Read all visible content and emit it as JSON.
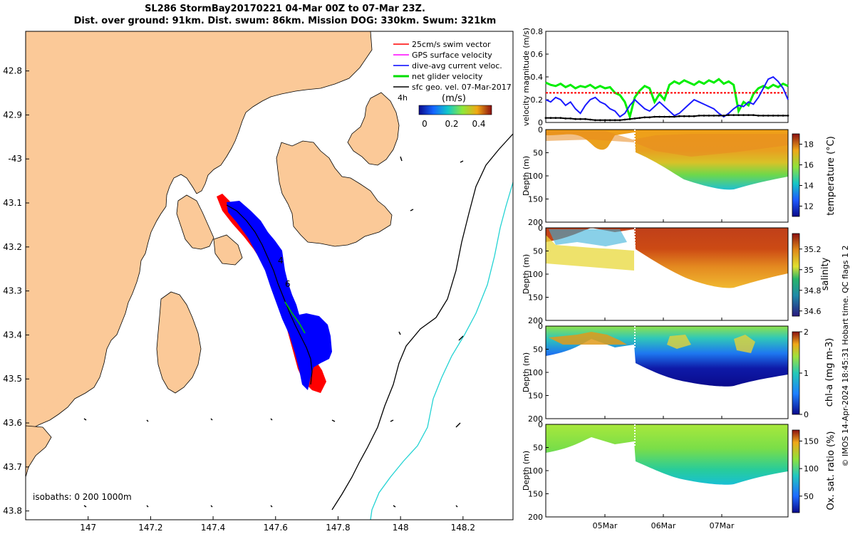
{
  "header": {
    "line1": "SL286 StormBay20170221 04-Mar 00Z to 07-Mar 23Z.",
    "line2": "Dist. over ground: 91km. Dist. swum: 86km. Mission DOG: 330km. Swum: 321km"
  },
  "map": {
    "legend": [
      {
        "label": "25cm/s swim vector",
        "color": "#ff0000"
      },
      {
        "label": "GPS surface velocity",
        "color": "#ff00ff"
      },
      {
        "label": "dive-avg current veloc.",
        "color": "#0000ff"
      },
      {
        "label": "net glider velocity",
        "color": "#00dd00"
      },
      {
        "label": "sfc geo. vel. 07-Mar-2017",
        "color": "#000000"
      }
    ],
    "time_tag": "4h",
    "speed_colorbar": {
      "label": "(m/s)",
      "ticks": [
        "0",
        "0.2",
        "0.4"
      ]
    },
    "isobaths_label": "isobaths: 0   200  1000m",
    "track_labels": [
      "4",
      "6"
    ],
    "land_color": "#fbc998"
  },
  "chart_data": [
    {
      "type": "map",
      "x_tick_labels": [
        "147",
        "147.2",
        "147.4",
        "147.6",
        "147.8",
        "148",
        "148.2"
      ],
      "x_ticks": [
        147,
        147.2,
        147.4,
        147.6,
        147.8,
        148,
        148.2
      ],
      "xlim": [
        146.8,
        148.36
      ],
      "y_tick_labels": [
        "42.8",
        "42.9",
        "-43",
        "43.1",
        "43.2",
        "43.3",
        "43.4",
        "43.5",
        "43.6",
        "43.7",
        "43.8"
      ],
      "y_ticks": [
        -42.8,
        -42.9,
        -43.0,
        -43.1,
        -43.2,
        -43.3,
        -43.4,
        -43.5,
        -43.6,
        -43.7,
        -43.8
      ],
      "ylim": [
        -43.82,
        -42.71
      ],
      "glider_track": [
        [
          147.42,
          -43.09
        ],
        [
          147.47,
          -43.12
        ],
        [
          147.53,
          -43.16
        ],
        [
          147.57,
          -43.22
        ],
        [
          147.6,
          -43.27
        ],
        [
          147.63,
          -43.33
        ],
        [
          147.66,
          -43.37
        ],
        [
          147.7,
          -43.42
        ],
        [
          147.72,
          -43.47
        ],
        [
          147.72,
          -43.52
        ]
      ]
    },
    {
      "type": "line",
      "ylabel": "velocity magnitude (m/s)",
      "ylim": [
        0,
        0.8
      ],
      "y_tick_labels": [
        "0",
        "0.2",
        "0.4",
        "0.6",
        "0.8"
      ],
      "series": [
        {
          "name": "net glider velocity",
          "color": "#00ee00",
          "values": [
            0.35,
            0.33,
            0.32,
            0.34,
            0.31,
            0.33,
            0.3,
            0.32,
            0.31,
            0.33,
            0.3,
            0.32,
            0.3,
            0.31,
            0.26,
            0.24,
            0.18,
            0.05,
            0.22,
            0.28,
            0.32,
            0.3,
            0.18,
            0.25,
            0.2,
            0.33,
            0.36,
            0.34,
            0.37,
            0.35,
            0.33,
            0.36,
            0.34,
            0.37,
            0.35,
            0.38,
            0.34,
            0.36,
            0.33,
            0.1,
            0.18,
            0.15,
            0.25,
            0.3,
            0.32,
            0.3,
            0.33,
            0.31,
            0.34,
            0.32
          ]
        },
        {
          "name": "swim vector",
          "color": "#ff0000",
          "values": [
            0.26,
            0.26,
            0.26,
            0.26,
            0.26,
            0.26,
            0.26,
            0.26,
            0.26,
            0.26,
            0.26,
            0.26,
            0.26,
            0.26,
            0.26,
            0.26,
            0.26,
            0.26,
            0.26,
            0.26,
            0.26,
            0.26,
            0.26,
            0.26,
            0.26,
            0.26,
            0.26,
            0.26,
            0.26,
            0.26,
            0.26,
            0.26,
            0.26,
            0.26,
            0.26,
            0.26,
            0.26,
            0.26,
            0.26,
            0.26,
            0.26,
            0.26,
            0.26,
            0.26,
            0.26,
            0.26,
            0.26,
            0.26,
            0.26,
            0.26
          ]
        },
        {
          "name": "dive-avg current",
          "color": "#1a1aff",
          "values": [
            0.2,
            0.18,
            0.22,
            0.2,
            0.15,
            0.18,
            0.12,
            0.08,
            0.15,
            0.2,
            0.22,
            0.18,
            0.16,
            0.12,
            0.1,
            0.05,
            0.08,
            0.15,
            0.2,
            0.16,
            0.12,
            0.1,
            0.14,
            0.18,
            0.14,
            0.1,
            0.06,
            0.08,
            0.12,
            0.16,
            0.2,
            0.18,
            0.16,
            0.14,
            0.12,
            0.08,
            0.05,
            0.08,
            0.12,
            0.15,
            0.14,
            0.18,
            0.16,
            0.22,
            0.3,
            0.38,
            0.4,
            0.36,
            0.3,
            0.2
          ]
        },
        {
          "name": "sfc geo. vel.",
          "color": "#000000",
          "values": [
            0.04,
            0.04,
            0.04,
            0.04,
            0.035,
            0.035,
            0.03,
            0.03,
            0.03,
            0.025,
            0.02,
            0.02,
            0.02,
            0.02,
            0.02,
            0.02,
            0.025,
            0.03,
            0.035,
            0.04,
            0.045,
            0.045,
            0.05,
            0.05,
            0.05,
            0.05,
            0.05,
            0.055,
            0.055,
            0.055,
            0.055,
            0.06,
            0.06,
            0.06,
            0.06,
            0.06,
            0.06,
            0.065,
            0.065,
            0.065,
            0.065,
            0.065,
            0.065,
            0.06,
            0.06,
            0.06,
            0.06,
            0.06,
            0.06,
            0.06
          ]
        }
      ]
    },
    {
      "type": "heatmap",
      "variable": "temperature",
      "colorbar_label": "temperature (°C)",
      "ylabel": "Depth (m)",
      "ylim": [
        200,
        0
      ],
      "y_tick_labels": [
        "0",
        "50",
        "100",
        "150",
        "200"
      ],
      "cbar_ticks": [
        "18",
        "16",
        "14",
        "12"
      ],
      "clim": [
        11,
        19
      ]
    },
    {
      "type": "heatmap",
      "variable": "salinity",
      "colorbar_label": "salinity",
      "ylabel": "Depth (m)",
      "ylim": [
        200,
        0
      ],
      "y_tick_labels": [
        "0",
        "50",
        "100",
        "150",
        "200"
      ],
      "cbar_ticks": [
        "35.2",
        "35",
        "34.8",
        "34.6"
      ],
      "clim": [
        34.55,
        35.35
      ]
    },
    {
      "type": "heatmap",
      "variable": "chl-a",
      "colorbar_label": "chl-a (mg m-3)",
      "ylabel": "Depth (m)",
      "ylim": [
        200,
        0
      ],
      "y_tick_labels": [
        "0",
        "50",
        "100",
        "150",
        "200"
      ],
      "cbar_ticks": [
        "2",
        "1",
        "0"
      ],
      "clim": [
        0,
        2
      ]
    },
    {
      "type": "heatmap",
      "variable": "oxygen saturation",
      "colorbar_label": "Ox. sat. ratio (%)",
      "ylabel": "Depth (m)",
      "ylim": [
        200,
        0
      ],
      "y_tick_labels": [
        "0",
        "50",
        "100",
        "150",
        "200"
      ],
      "x_tick_labels": [
        "05Mar",
        "06Mar",
        "07Mar"
      ],
      "cbar_ticks": [
        "150",
        "100",
        "50"
      ],
      "clim": [
        20,
        170
      ]
    }
  ],
  "side_note": "© IMOS 14-Apr-2024 18:45:31 Hobart time. QC flags 1  2"
}
